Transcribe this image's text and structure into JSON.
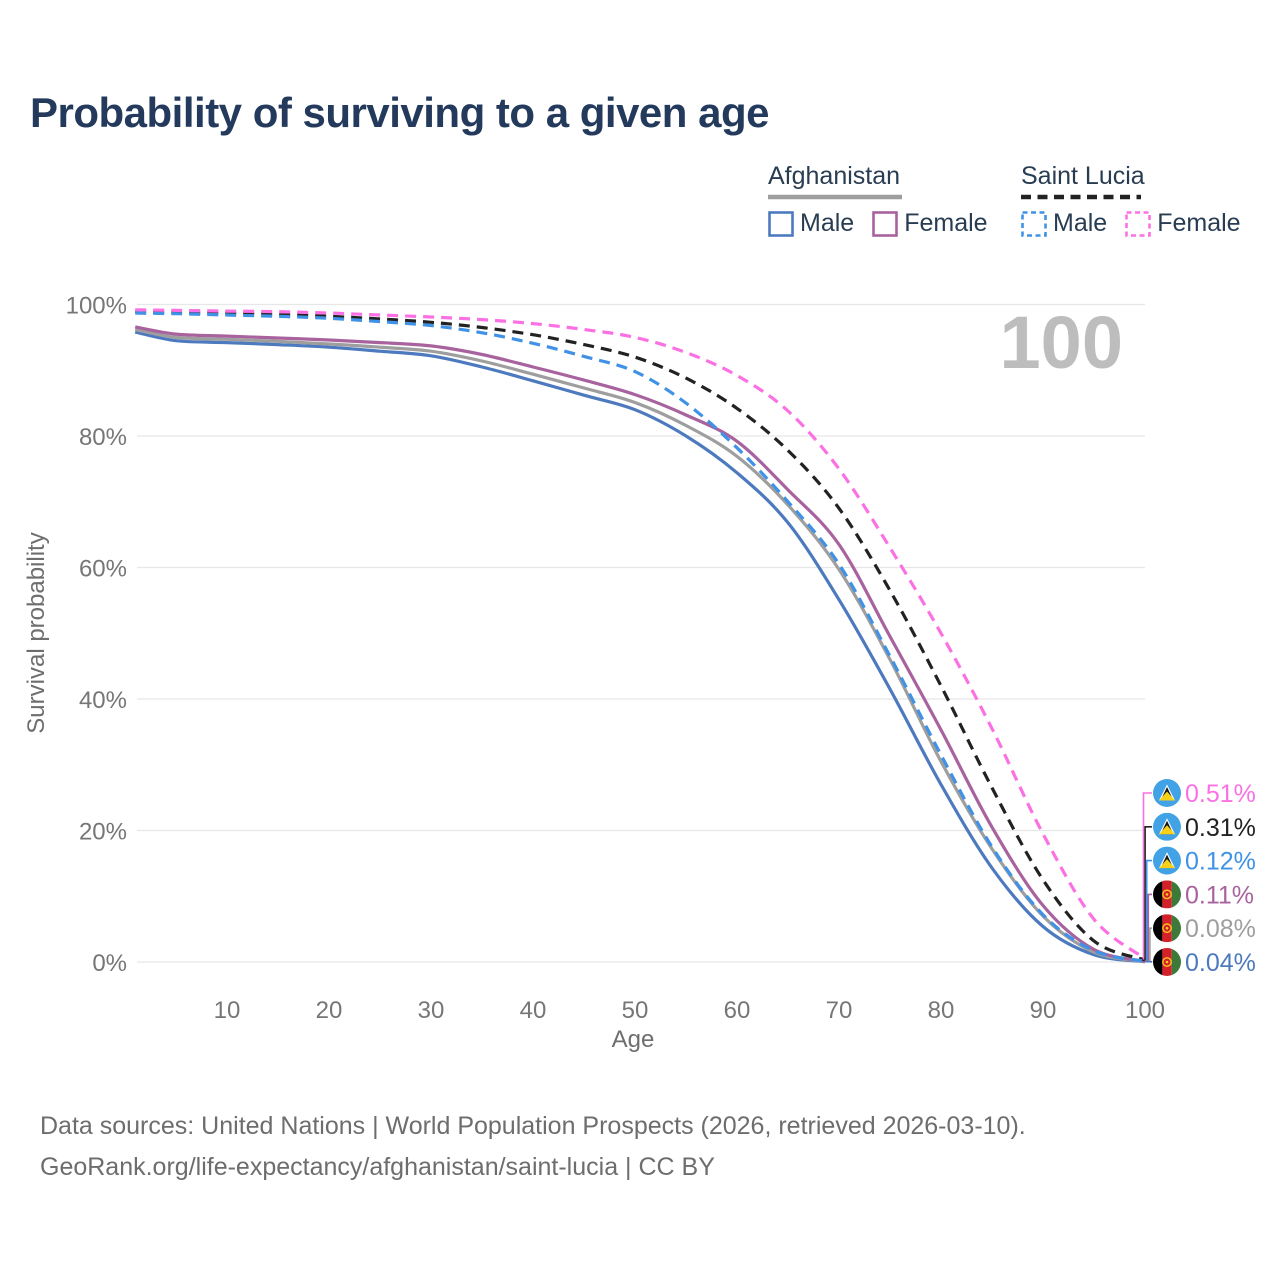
{
  "title": "Probability of surviving to a given age",
  "age_watermark": "100",
  "legend": {
    "afghanistan": {
      "label": "Afghanistan"
    },
    "saint_lucia": {
      "label": "Saint Lucia"
    },
    "male_label": "Male",
    "female_label": "Female"
  },
  "chart_data": {
    "type": "line",
    "title": "Probability of surviving to a given age",
    "xlabel": "Age",
    "ylabel": "Survival probability",
    "xlim": [
      1,
      100
    ],
    "ylim": [
      0,
      100
    ],
    "grid": "horizontal-only",
    "legend_position": "top-right",
    "x_tick_labels": [
      "10",
      "20",
      "30",
      "40",
      "50",
      "60",
      "70",
      "80",
      "90",
      "100"
    ],
    "y_tick_labels": [
      "0%",
      "20%",
      "40%",
      "60%",
      "80%",
      "100%"
    ],
    "x": [
      1,
      5,
      10,
      15,
      20,
      25,
      30,
      35,
      40,
      45,
      50,
      55,
      60,
      65,
      70,
      75,
      80,
      85,
      90,
      95,
      100
    ],
    "series": [
      {
        "name": "Afghanistan Male",
        "country": "Afghanistan",
        "sex": "Male",
        "color": "#4d7abf",
        "dashed": false,
        "end_label": "0.04%",
        "values": [
          95.8,
          94.5,
          94.2,
          93.9,
          93.5,
          92.9,
          92.2,
          90.5,
          88.4,
          86.2,
          84.0,
          80.0,
          74.4,
          66.8,
          55.1,
          41.5,
          27.0,
          14.3,
          5.4,
          1.1,
          0.04
        ]
      },
      {
        "name": "Afghanistan Both sexes",
        "country": "Afghanistan",
        "sex": "Both",
        "color": "#9e9e9e",
        "dashed": false,
        "end_label": "0.08%",
        "values": [
          96.2,
          95.0,
          94.7,
          94.4,
          94.0,
          93.5,
          92.9,
          91.4,
          89.4,
          87.3,
          85.1,
          81.6,
          76.9,
          69.5,
          59.7,
          46.0,
          30.5,
          17.2,
          7.0,
          1.5,
          0.08
        ]
      },
      {
        "name": "Afghanistan Female",
        "country": "Afghanistan",
        "sex": "Female",
        "color": "#a8639f",
        "dashed": false,
        "end_label": "0.11%",
        "values": [
          96.6,
          95.5,
          95.2,
          94.9,
          94.6,
          94.2,
          93.7,
          92.4,
          90.5,
          88.5,
          86.3,
          83.2,
          79.2,
          71.8,
          63.5,
          49.5,
          35.3,
          20.5,
          8.6,
          1.9,
          0.11
        ]
      },
      {
        "name": "Saint Lucia Both sexes",
        "country": "Saint Lucia",
        "sex": "Both",
        "color": "#222222",
        "dashed": true,
        "end_label": "0.31%",
        "values": [
          98.9,
          98.8,
          98.7,
          98.5,
          98.2,
          97.8,
          97.3,
          96.5,
          95.4,
          93.9,
          92.0,
          88.8,
          84.2,
          77.8,
          69.0,
          56.5,
          42.0,
          26.5,
          12.5,
          3.2,
          0.31
        ]
      },
      {
        "name": "Saint Lucia Male",
        "country": "Saint Lucia",
        "sex": "Male",
        "color": "#3f92e6",
        "dashed": true,
        "end_label": "0.12%",
        "values": [
          98.7,
          98.6,
          98.4,
          98.2,
          97.9,
          97.4,
          96.8,
          95.7,
          94.1,
          92.1,
          89.8,
          85.0,
          78.2,
          70.0,
          60.5,
          46.5,
          31.5,
          17.5,
          7.2,
          1.7,
          0.12
        ]
      },
      {
        "name": "Saint Lucia Female",
        "country": "Saint Lucia",
        "sex": "Female",
        "color": "#fb71e3",
        "dashed": true,
        "end_label": "0.51%",
        "values": [
          99.2,
          99.1,
          99.0,
          98.9,
          98.7,
          98.4,
          98.1,
          97.7,
          97.1,
          96.2,
          95.0,
          92.7,
          89.2,
          83.8,
          75.0,
          63.0,
          50.0,
          35.5,
          19.5,
          6.5,
          0.51
        ]
      }
    ],
    "colors": {
      "gridline": "#e7e7e7",
      "axis_text": "#767676",
      "title_text": "#243a5c",
      "watermark": "#bdbdbd",
      "slc_flag_blue": "#41a3e6",
      "slc_flag_yellow": "#f7d117",
      "afg_flag_red": "#d32029",
      "afg_flag_green": "#3d7a3a"
    }
  },
  "footer": {
    "sources": "Data sources: United Nations | World Population Prospects (2026, retrieved 2026-03-10).",
    "link": "GeoRank.org/life-expectancy/afghanistan/saint-lucia | CC BY"
  }
}
